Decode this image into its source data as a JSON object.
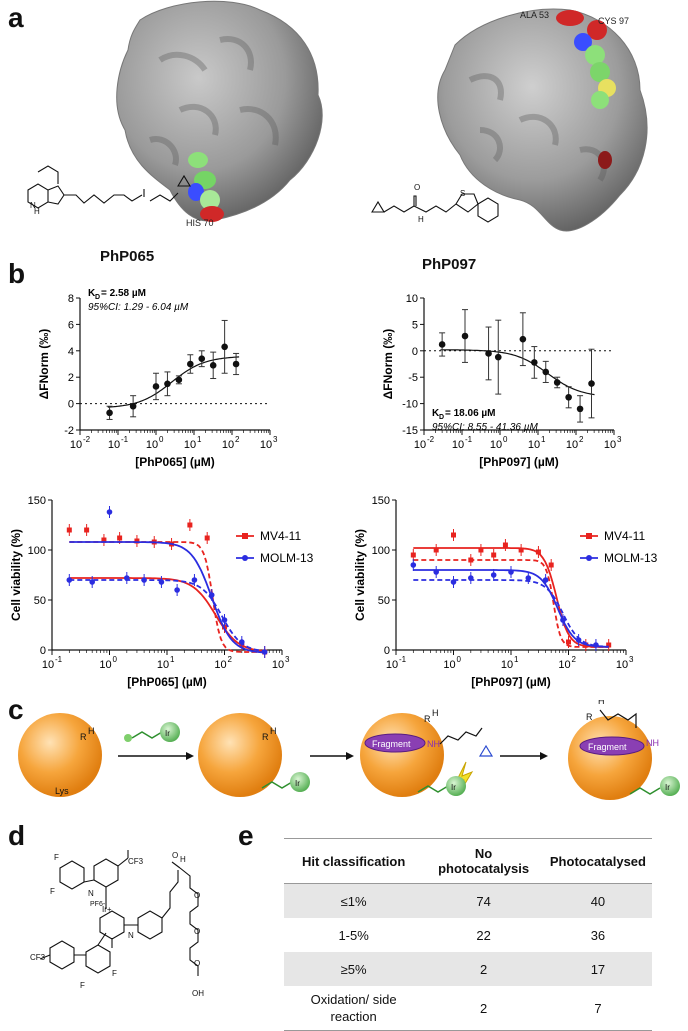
{
  "panels": {
    "a": "a",
    "b": "b",
    "c": "c",
    "d": "d",
    "e": "e"
  },
  "panel_a": {
    "left": {
      "name": "PhP065",
      "residues": [
        "HIS 70"
      ]
    },
    "right": {
      "name": "PhP097",
      "residues": [
        "ALA 53",
        "CYS 97"
      ]
    }
  },
  "chart_data": [
    {
      "type": "scatter",
      "id": "mst-php065",
      "xlabel": "[PhP065] (µM)",
      "ylabel": "ΔFNorm (‰)",
      "x_scale": "log",
      "xlim": [
        0.01,
        1000
      ],
      "ylim": [
        -2,
        8
      ],
      "x_ticks": [
        "10-2",
        "10-1",
        "100",
        "101",
        "102",
        "103"
      ],
      "y_ticks": [
        -2,
        0,
        2,
        4,
        6,
        8
      ],
      "kd_label": "K",
      "kd_sub": "D",
      "kd_value": " = 2.58   µM",
      "ci_text": "95%CI: 1.29    - 6.04   µM",
      "points": [
        {
          "x": 0.06,
          "y": -0.7,
          "err": 0.5
        },
        {
          "x": 0.25,
          "y": -0.2,
          "err": 0.8
        },
        {
          "x": 1.0,
          "y": 1.3,
          "err": 1.0
        },
        {
          "x": 2.0,
          "y": 1.5,
          "err": 0.9
        },
        {
          "x": 4.0,
          "y": 1.8,
          "err": 0.3
        },
        {
          "x": 8.0,
          "y": 3.0,
          "err": 0.7
        },
        {
          "x": 16,
          "y": 3.4,
          "err": 0.6
        },
        {
          "x": 32,
          "y": 2.9,
          "err": 1.0
        },
        {
          "x": 64,
          "y": 4.3,
          "err": 2.0
        },
        {
          "x": 128,
          "y": 3.0,
          "err": 0.8
        }
      ],
      "fit": {
        "bottom": -0.35,
        "top": 3.6,
        "ec50": 2.58,
        "hill": 1.0
      }
    },
    {
      "type": "scatter",
      "id": "mst-php097",
      "xlabel": "[PhP097] (µM)",
      "ylabel": "ΔFNorm (‰)",
      "x_scale": "log",
      "xlim": [
        0.01,
        1000
      ],
      "ylim": [
        -15,
        10
      ],
      "x_ticks": [
        "10-2",
        "10-1",
        "100",
        "101",
        "102",
        "103"
      ],
      "y_ticks": [
        -15,
        -10,
        -5,
        0,
        5,
        10
      ],
      "kd_label": "K",
      "kd_sub": "D",
      "kd_value": " = 18.06 µM",
      "ci_text": "95%CI: 8.55    - 41.36 µM",
      "points": [
        {
          "x": 0.03,
          "y": 1.2,
          "err": 2.2
        },
        {
          "x": 0.12,
          "y": 2.8,
          "err": 5.0
        },
        {
          "x": 0.5,
          "y": -0.5,
          "err": 5.0
        },
        {
          "x": 0.9,
          "y": -1.2,
          "err": 7.0
        },
        {
          "x": 4.0,
          "y": 2.2,
          "err": 5.0
        },
        {
          "x": 8.0,
          "y": -2.2,
          "err": 3.0
        },
        {
          "x": 16,
          "y": -4.0,
          "err": 2.0
        },
        {
          "x": 32,
          "y": -6.0,
          "err": 1.0
        },
        {
          "x": 64,
          "y": -8.8,
          "err": 2.0
        },
        {
          "x": 128,
          "y": -11.0,
          "err": 2.5
        },
        {
          "x": 256,
          "y": -6.2,
          "err": 6.5
        }
      ],
      "fit": {
        "bottom": -8.8,
        "top": 0.2,
        "ec50": 18.06,
        "hill": 1.0
      }
    },
    {
      "type": "line",
      "id": "viability-php065",
      "xlabel": "[PhP065] (µM)",
      "ylabel": "Cell viability (%)",
      "x_scale": "log",
      "xlim": [
        0.1,
        1000
      ],
      "ylim": [
        0,
        150
      ],
      "x_ticks": [
        "10-1",
        "100",
        "101",
        "102",
        "103"
      ],
      "y_ticks": [
        0,
        50,
        100,
        150
      ],
      "legend": "top-right",
      "series": [
        {
          "name": "MV4-11",
          "color": "#e8231f",
          "points": [
            [
              0.2,
              120
            ],
            [
              0.4,
              120
            ],
            [
              0.8,
              110
            ],
            [
              1.5,
              112
            ],
            [
              3,
              109
            ],
            [
              6,
              108
            ],
            [
              12,
              106
            ],
            [
              25,
              125
            ],
            [
              50,
              112
            ],
            [
              100,
              23
            ],
            [
              200,
              5
            ],
            [
              500,
              -2
            ]
          ],
          "fit_solid": {
            "top": 72,
            "bottom": -2,
            "ec50": 70,
            "hill": 2.2
          },
          "fit_dashed": {
            "top": 108,
            "bottom": -2,
            "ec50": 62,
            "hill": 6
          }
        },
        {
          "name": "MOLM-13",
          "color": "#2b2de0",
          "points": [
            [
              0.2,
              70
            ],
            [
              0.5,
              68
            ],
            [
              1,
              138
            ],
            [
              2,
              72
            ],
            [
              4,
              70
            ],
            [
              8,
              68
            ],
            [
              15,
              60
            ],
            [
              30,
              70
            ],
            [
              60,
              55
            ],
            [
              100,
              30
            ],
            [
              200,
              8
            ],
            [
              500,
              -2
            ]
          ],
          "fit_solid": {
            "top": 108,
            "bottom": -3,
            "ec50": 60,
            "hill": 2.5
          },
          "fit_dashed": {
            "top": 70,
            "bottom": -2,
            "ec50": 90,
            "hill": 2.5
          }
        }
      ]
    },
    {
      "type": "line",
      "id": "viability-php097",
      "xlabel": "[PhP097] (µM)",
      "ylabel": "Cell viability (%)",
      "x_scale": "log",
      "xlim": [
        0.1,
        1000
      ],
      "ylim": [
        0,
        150
      ],
      "x_ticks": [
        "10-1",
        "100",
        "101",
        "102",
        "103"
      ],
      "y_ticks": [
        0,
        50,
        100,
        150
      ],
      "legend": "top-right",
      "series": [
        {
          "name": "MV4-11",
          "color": "#e8231f",
          "points": [
            [
              0.2,
              95
            ],
            [
              0.5,
              100
            ],
            [
              1,
              115
            ],
            [
              2,
              90
            ],
            [
              3,
              100
            ],
            [
              5,
              95
            ],
            [
              8,
              105
            ],
            [
              15,
              100
            ],
            [
              30,
              98
            ],
            [
              50,
              85
            ],
            [
              100,
              8
            ],
            [
              200,
              5
            ],
            [
              500,
              5
            ]
          ],
          "fit_solid": {
            "top": 102,
            "bottom": 3,
            "ec50": 62,
            "hill": 4
          },
          "fit_dashed": {
            "top": 90,
            "bottom": 3,
            "ec50": 55,
            "hill": 7
          }
        },
        {
          "name": "MOLM-13",
          "color": "#2b2de0",
          "points": [
            [
              0.2,
              85
            ],
            [
              0.5,
              78
            ],
            [
              1,
              68
            ],
            [
              2,
              72
            ],
            [
              5,
              75
            ],
            [
              10,
              78
            ],
            [
              20,
              72
            ],
            [
              40,
              70
            ],
            [
              80,
              30
            ],
            [
              150,
              10
            ],
            [
              300,
              5
            ]
          ],
          "fit_solid": {
            "top": 80,
            "bottom": 3,
            "ec50": 65,
            "hill": 3
          },
          "fit_dashed": {
            "top": 70,
            "bottom": 3,
            "ec50": 80,
            "hill": 3
          }
        }
      ]
    }
  ],
  "panel_c": {
    "fragment": "Fragment",
    "lys": "Lys",
    "ir": "Ir",
    "r": "R",
    "h": "H",
    "nh": "NH"
  },
  "panel_d": {
    "pf6": "PF6-",
    "ir": "Ir+",
    "oh": "OH",
    "h": "H",
    "f": "F",
    "n": "N",
    "o": "O",
    "cf3": "CF3"
  },
  "table": {
    "headers": [
      "Hit classification",
      "No photocatalysis",
      "Photocatalysed"
    ],
    "rows": [
      {
        "label": "≤1%",
        "no": "74",
        "photo": "40"
      },
      {
        "label": "1-5%",
        "no": "22",
        "photo": "36"
      },
      {
        "label": "≥5%",
        "no": "2",
        "photo": "17"
      },
      {
        "label": "Oxidation/ side reaction",
        "no": "2",
        "photo": "7"
      }
    ]
  }
}
